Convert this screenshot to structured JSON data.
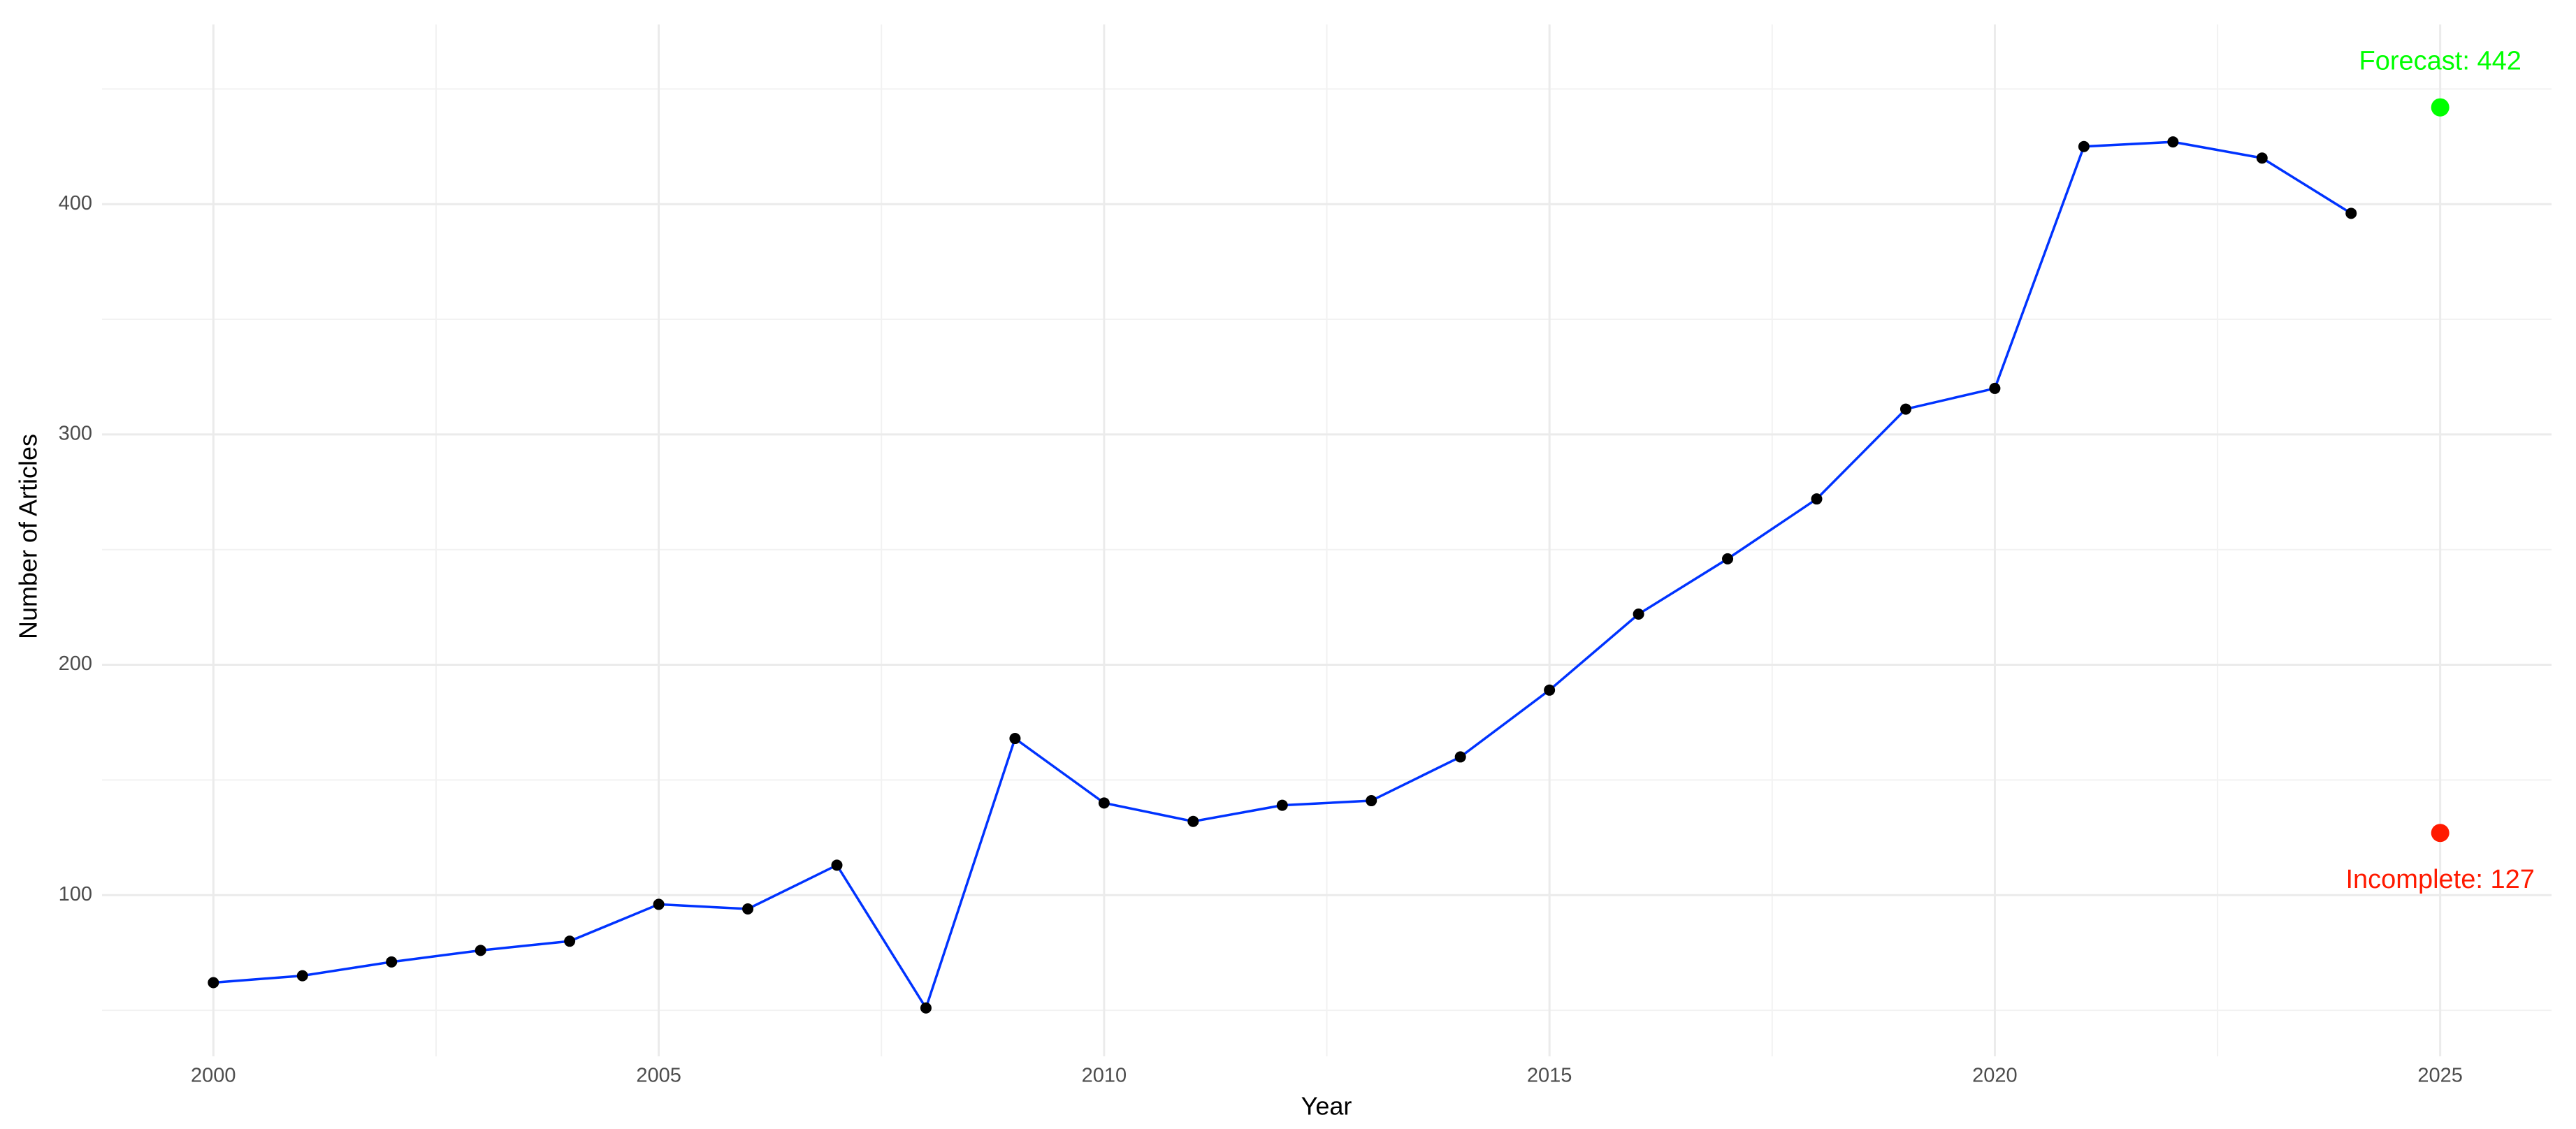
{
  "chart_data": {
    "type": "line",
    "x_label": "Year",
    "y_label": "Number of Articles",
    "x": [
      2000,
      2001,
      2002,
      2003,
      2004,
      2005,
      2006,
      2007,
      2008,
      2009,
      2010,
      2011,
      2012,
      2013,
      2014,
      2015,
      2016,
      2017,
      2018,
      2019,
      2020,
      2021,
      2022,
      2023,
      2024
    ],
    "values": [
      62,
      65,
      71,
      76,
      80,
      96,
      94,
      113,
      51,
      168,
      140,
      132,
      139,
      141,
      160,
      189,
      222,
      246,
      272,
      311,
      320,
      425,
      427,
      420,
      396
    ],
    "color": "#0033ff",
    "point_color": "#000000",
    "annotations": [
      {
        "text": "Forecast: 442",
        "x": 2025,
        "value": 442,
        "color": "#00ff00",
        "position": "above"
      },
      {
        "text": "Incomplete: 127",
        "x": 2025,
        "value": 127,
        "color": "#ff1a00",
        "position": "below"
      }
    ],
    "xlim": [
      1998.75,
      2026.25
    ],
    "xticks": [
      2000,
      2005,
      2010,
      2015,
      2020,
      2025
    ],
    "x_minor_grid": [
      2002.5,
      2007.5,
      2012.5,
      2017.5,
      2022.5
    ],
    "ylim": [
      30,
      478
    ],
    "yticks": [
      100,
      200,
      300,
      400
    ],
    "y_minor_grid": [
      50,
      150,
      250,
      350,
      450
    ],
    "grid": true
  }
}
